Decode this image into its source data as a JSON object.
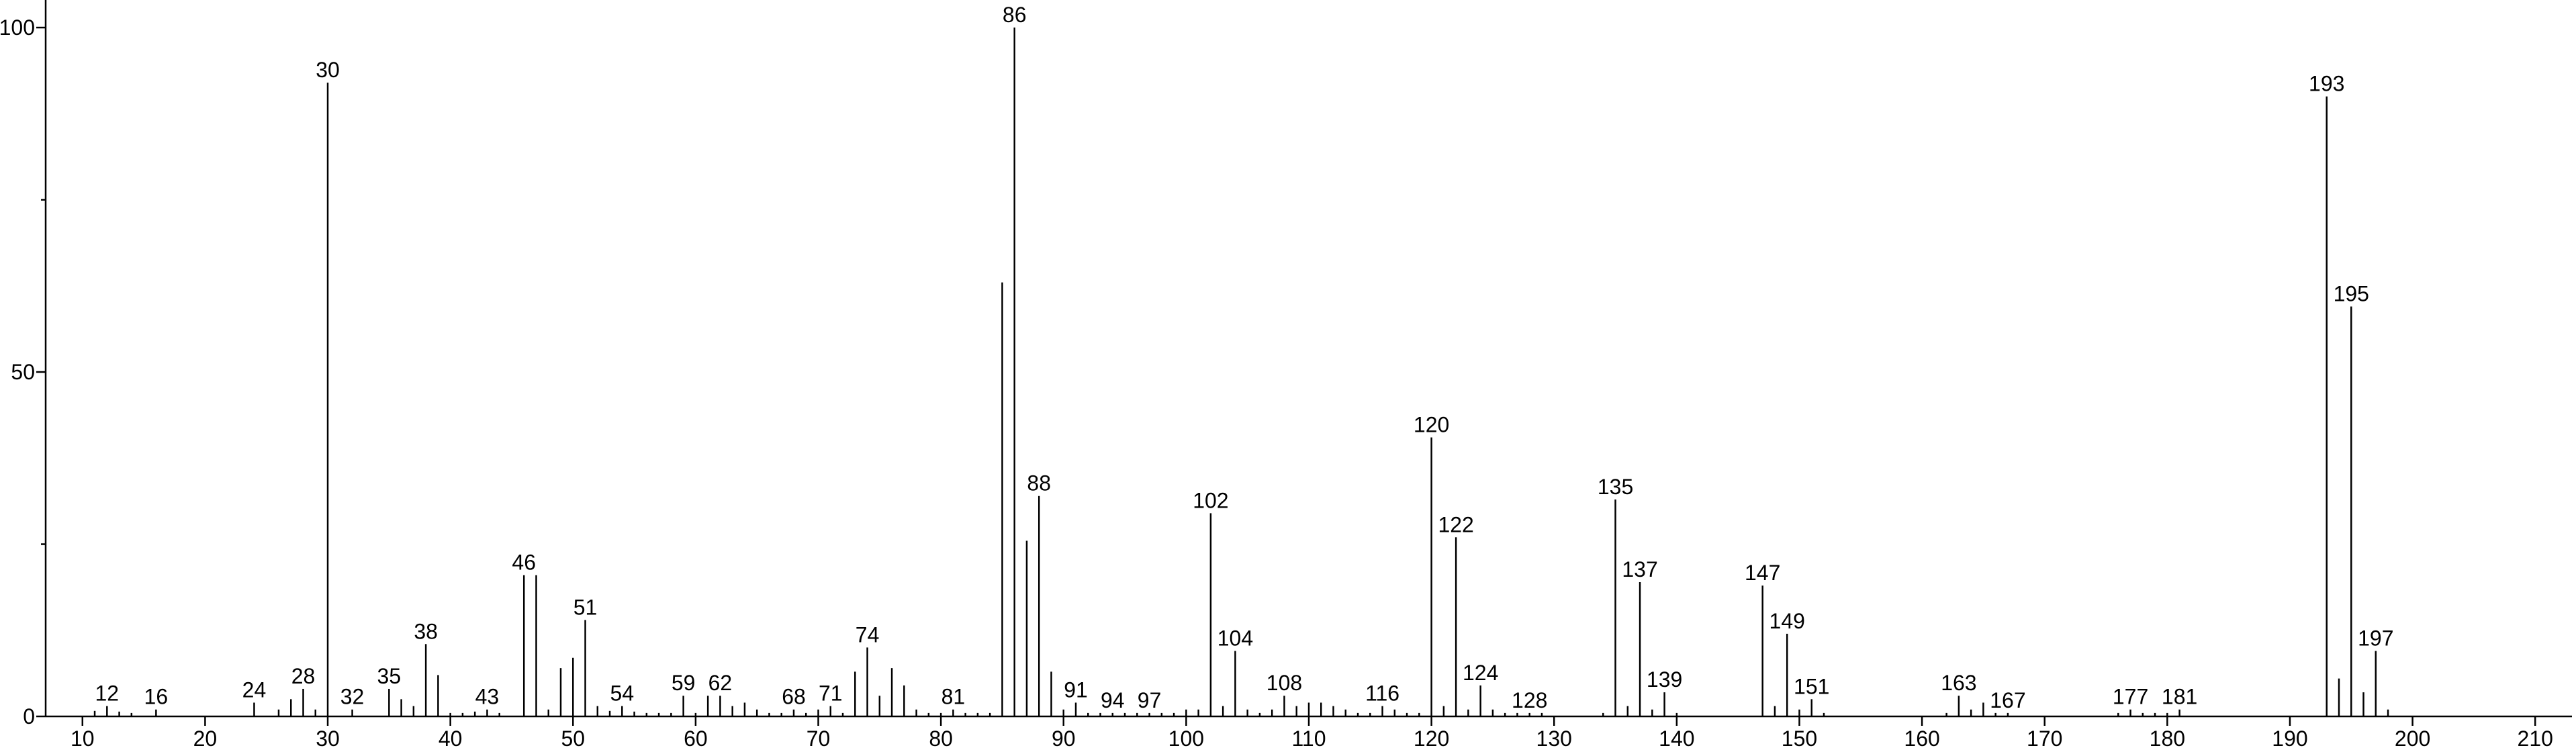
{
  "chart_data": {
    "type": "spectrum",
    "color": "#000000",
    "series": [
      {
        "x": [
          12,
          16,
          24,
          28,
          30,
          32,
          35,
          38,
          43,
          46,
          51,
          54,
          59,
          62,
          68,
          71,
          74,
          81,
          86,
          88,
          91,
          94,
          97,
          102,
          104,
          108,
          116,
          120,
          122,
          124,
          128,
          135,
          137,
          139,
          147,
          149,
          151,
          163,
          167,
          177,
          181,
          193,
          195,
          197
        ],
        "values": [
          1.5,
          1,
          2,
          4,
          92,
          1,
          4,
          10.5,
          1,
          20.5,
          14,
          1.5,
          3,
          3,
          1,
          1.5,
          10,
          1,
          100,
          32,
          2,
          0.5,
          0.5,
          29.5,
          9.5,
          3,
          1.5,
          40.5,
          26,
          4.5,
          0.5,
          31.5,
          19.5,
          3.5,
          19,
          12,
          2.5,
          3,
          0.5,
          1,
          1,
          90,
          59.5,
          9.5
        ]
      },
      {
        "x": [
          11,
          13,
          14,
          26,
          27,
          29,
          36,
          37,
          39,
          40,
          41,
          42,
          44,
          47,
          48,
          49,
          50,
          52,
          53,
          55,
          56,
          57,
          58,
          60,
          61,
          63,
          64,
          65,
          66,
          67,
          69,
          70,
          72,
          73,
          75,
          76,
          77,
          78,
          79,
          80,
          82,
          83,
          84,
          85,
          87,
          89,
          90,
          92,
          93,
          95,
          96,
          98,
          99,
          100,
          101,
          103,
          105,
          106,
          107,
          109,
          110,
          111,
          112,
          113,
          114,
          115,
          117,
          118,
          119,
          121,
          123,
          125,
          126,
          127,
          129,
          134,
          136,
          138,
          140,
          148,
          150,
          152,
          162,
          164,
          165,
          166,
          176,
          178,
          179,
          180,
          194,
          196,
          198
        ],
        "values": [
          0.8,
          0.7,
          0.5,
          1,
          2.5,
          1,
          2.5,
          1.5,
          6,
          0.5,
          0.5,
          0.7,
          0.5,
          20.5,
          1,
          7,
          8.5,
          1.5,
          0.8,
          0.7,
          0.5,
          0.5,
          0.5,
          0.5,
          3,
          1.5,
          2,
          1,
          0.5,
          0.5,
          0.5,
          1,
          0.5,
          6.5,
          3,
          7,
          4.5,
          1,
          0.5,
          0.5,
          0.5,
          0.5,
          0.5,
          63,
          25.5,
          6.5,
          1,
          0.5,
          0.5,
          0.5,
          0.5,
          0.5,
          0.5,
          1,
          1,
          1.5,
          1,
          0.5,
          1,
          1.5,
          2,
          2,
          1.5,
          1,
          0.5,
          0.5,
          1,
          0.5,
          0.5,
          1.5,
          1,
          1,
          0.5,
          0.5,
          0.5,
          0.5,
          1.5,
          1,
          0.5,
          1.5,
          1,
          0.5,
          0.5,
          1,
          2,
          0.5,
          0.5,
          0.5,
          0.5,
          0.5,
          5.5,
          3.5,
          1
        ]
      }
    ],
    "xlim": [
      7,
      213
    ],
    "xticks": [
      10,
      20,
      30,
      40,
      50,
      60,
      70,
      80,
      90,
      100,
      110,
      120,
      130,
      140,
      150,
      160,
      170,
      180,
      190,
      200,
      210
    ],
    "ylim": [
      0,
      104
    ],
    "yticks": [
      0,
      50,
      100
    ],
    "yminorticks": [
      25,
      75
    ]
  }
}
